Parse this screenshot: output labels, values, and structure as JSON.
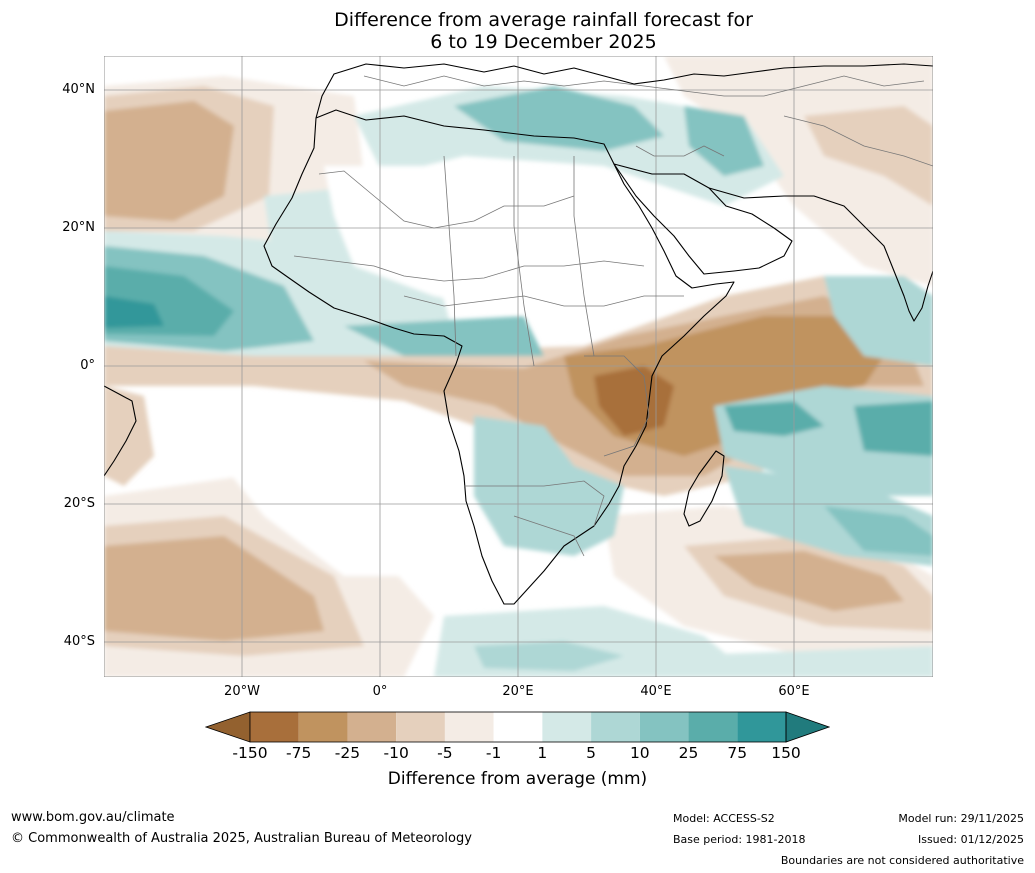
{
  "title_line1": "Difference from average rainfall forecast for",
  "title_line2": "6 to 19 December 2025",
  "lat_labels": [
    "40°N",
    "20°N",
    "0°",
    "20°S",
    "40°S"
  ],
  "lon_labels": [
    "20°W",
    "0°",
    "20°E",
    "40°E",
    "60°E"
  ],
  "colorbar": {
    "title": "Difference from average (mm)",
    "ticks": [
      "-150",
      "-75",
      "-25",
      "-10",
      "-5",
      "-1",
      "1",
      "5",
      "10",
      "25",
      "75",
      "150"
    ],
    "colors": [
      "#a86f3b",
      "#c0935f",
      "#d3b08f",
      "#e5d0bd",
      "#f4ece5",
      "#ffffff",
      "#d4e9e7",
      "#aed7d5",
      "#84c3c1",
      "#5aadaa",
      "#30979a"
    ],
    "under_color": "#93612f",
    "over_color": "#217b7d"
  },
  "footer": {
    "url": "www.bom.gov.au/climate",
    "copyright": "© Commonwealth of Australia 2025, Australian Bureau of Meteorology",
    "model": "Model: ACCESS-S2",
    "base_period": "Base period: 1981-2018",
    "model_run": "Model run: 29/11/2025",
    "issued": "Issued: 01/12/2025",
    "disclaimer": "Boundaries are not considered authoritative"
  }
}
